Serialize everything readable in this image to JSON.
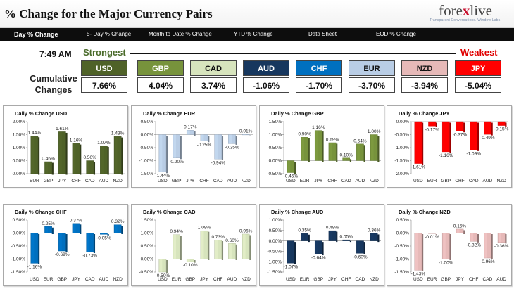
{
  "header": {
    "title": "% Change for the Major Currency Pairs",
    "logo_left": "fore",
    "logo_x": "x",
    "logo_right": "live",
    "logo_tagline": "Transparent Conversations. Window Labs."
  },
  "tabs": [
    "Day % Change",
    "5- Day % Change",
    "Month to Date % Change",
    "YTD % Change",
    "Data Sheet",
    "EOD % Change"
  ],
  "summary": {
    "time": "7:49 AM",
    "strongest": "Strongest",
    "weakest": "Weakest",
    "cumulative_line1": "Cumulative",
    "cumulative_line2": "Changes",
    "currencies": [
      {
        "code": "USD",
        "value": "7.66%",
        "bg": "#4f6228",
        "fg": "#ffffff"
      },
      {
        "code": "GBP",
        "value": "4.04%",
        "bg": "#77933c",
        "fg": "#ffffff"
      },
      {
        "code": "CAD",
        "value": "3.74%",
        "bg": "#d7e4bd",
        "fg": "#111111"
      },
      {
        "code": "AUD",
        "value": "-1.06%",
        "bg": "#17375e",
        "fg": "#ffffff"
      },
      {
        "code": "CHF",
        "value": "-1.70%",
        "bg": "#0070c0",
        "fg": "#ffffff"
      },
      {
        "code": "EUR",
        "value": "-3.70%",
        "bg": "#b9cde5",
        "fg": "#111111"
      },
      {
        "code": "NZD",
        "value": "-3.94%",
        "bg": "#e6b9b8",
        "fg": "#111111"
      },
      {
        "code": "JPY",
        "value": "-5.04%",
        "bg": "#ff0000",
        "fg": "#ffffff"
      }
    ]
  },
  "chart_data": [
    {
      "type": "bar",
      "title": "Daily % Change USD",
      "categories": [
        "EUR",
        "GBP",
        "JPY",
        "CHF",
        "CAD",
        "AUD",
        "NZD"
      ],
      "values": [
        1.44,
        0.46,
        1.61,
        1.16,
        0.5,
        1.07,
        1.43
      ],
      "labels": [
        "1.44%",
        "0.46%",
        "1.61%",
        "1.16%",
        "0.50%",
        "1.07%",
        "1.43%"
      ],
      "ylim": [
        0,
        2.0
      ],
      "yticks": [
        "0.00%",
        "0.50%",
        "1.00%",
        "1.50%",
        "2.00%"
      ],
      "tick_values": [
        0,
        0.5,
        1.0,
        1.5,
        2.0
      ],
      "color": "#4f6228"
    },
    {
      "type": "bar",
      "title": "Daily % Change EUR",
      "categories": [
        "USD",
        "GBP",
        "JPY",
        "CHF",
        "CAD",
        "AUD",
        "NZD"
      ],
      "values": [
        -1.44,
        -0.9,
        0.17,
        -0.25,
        -0.94,
        -0.35,
        0.01
      ],
      "labels": [
        "-1.44%",
        "-0.90%",
        "0.17%",
        "-0.25%",
        "-0.94%",
        "-0.35%",
        "0.01%"
      ],
      "ylim": [
        -1.5,
        0.5
      ],
      "yticks": [
        "-1.50%",
        "-1.00%",
        "-0.50%",
        "0.00%",
        "0.50%"
      ],
      "tick_values": [
        -1.5,
        -1.0,
        -0.5,
        0,
        0.5
      ],
      "color": "#b9cde5"
    },
    {
      "type": "bar",
      "title": "Daily % Change GBP",
      "categories": [
        "USD",
        "EUR",
        "JPY",
        "CHF",
        "CAD",
        "AUD",
        "NZD"
      ],
      "values": [
        -0.46,
        0.9,
        1.16,
        0.69,
        0.1,
        0.64,
        1.0
      ],
      "labels": [
        "-0.46%",
        "0.90%",
        "1.16%",
        "0.69%",
        "0.10%",
        "0.64%",
        "1.00%"
      ],
      "ylim": [
        -0.5,
        1.5
      ],
      "yticks": [
        "-0.50%",
        "0.00%",
        "0.50%",
        "1.00%",
        "1.50%"
      ],
      "tick_values": [
        -0.5,
        0,
        0.5,
        1.0,
        1.5
      ],
      "color": "#77933c"
    },
    {
      "type": "bar",
      "title": "Daily % Change JPY",
      "categories": [
        "USD",
        "EUR",
        "GBP",
        "CHF",
        "CAD",
        "AUD",
        "NZD"
      ],
      "values": [
        -1.61,
        -0.17,
        -1.16,
        -0.37,
        -1.09,
        -0.49,
        -0.15
      ],
      "labels": [
        "-1.61%",
        "-0.17%",
        "-1.16%",
        "-0.37%",
        "-1.09%",
        "-0.49%",
        "-0.15%"
      ],
      "ylim": [
        -2.0,
        0
      ],
      "yticks": [
        "-2.00%",
        "-1.50%",
        "-1.00%",
        "-0.50%",
        "0.00%"
      ],
      "tick_values": [
        -2.0,
        -1.5,
        -1.0,
        -0.5,
        0
      ],
      "color": "#ff0000"
    },
    {
      "type": "bar",
      "title": "Daily % Change CHF",
      "categories": [
        "USD",
        "EUR",
        "GBP",
        "JPY",
        "CAD",
        "AUD",
        "NZD"
      ],
      "values": [
        -1.16,
        0.25,
        -0.69,
        0.37,
        -0.73,
        -0.05,
        0.32
      ],
      "labels": [
        "-1.16%",
        "0.25%",
        "-0.69%",
        "0.37%",
        "-0.73%",
        "-0.05%",
        "0.32%"
      ],
      "ylim": [
        -1.5,
        0.5
      ],
      "yticks": [
        "-1.50%",
        "-1.00%",
        "-0.50%",
        "0.00%",
        "0.50%"
      ],
      "tick_values": [
        -1.5,
        -1.0,
        -0.5,
        0,
        0.5
      ],
      "color": "#0070c0"
    },
    {
      "type": "bar",
      "title": "Daily % Change CAD",
      "categories": [
        "USD",
        "EUR",
        "GBP",
        "JPY",
        "CHF",
        "AUD",
        "NZD"
      ],
      "values": [
        -0.5,
        0.94,
        -0.1,
        1.09,
        0.73,
        0.6,
        0.96
      ],
      "labels": [
        "-0.50%",
        "0.94%",
        "-0.10%",
        "1.09%",
        "0.73%",
        "0.60%",
        "0.96%"
      ],
      "ylim": [
        -0.5,
        1.5
      ],
      "yticks": [
        "-0.50%",
        "0.00%",
        "0.50%",
        "1.00%",
        "1.50%"
      ],
      "tick_values": [
        -0.5,
        0,
        0.5,
        1.0,
        1.5
      ],
      "color": "#d7e4bd"
    },
    {
      "type": "bar",
      "title": "Daily % Change AUD",
      "categories": [
        "USD",
        "EUR",
        "GBP",
        "JPY",
        "CHF",
        "CAD",
        "NZD"
      ],
      "values": [
        -1.07,
        0.35,
        -0.64,
        0.49,
        0.05,
        -0.6,
        0.36
      ],
      "labels": [
        "-1.07%",
        "0.35%",
        "-0.64%",
        "0.49%",
        "0.05%",
        "-0.60%",
        "0.36%"
      ],
      "ylim": [
        -1.5,
        1.0
      ],
      "yticks": [
        "-1.50%",
        "-1.00%",
        "-0.50%",
        "0.00%",
        "0.50%",
        "1.00%"
      ],
      "tick_values": [
        -1.5,
        -1.0,
        -0.5,
        0,
        0.5,
        1.0
      ],
      "color": "#17375e"
    },
    {
      "type": "bar",
      "title": "Daily % Change NZD",
      "categories": [
        "USD",
        "EUR",
        "GBP",
        "JPY",
        "CHF",
        "CAD",
        "AUD"
      ],
      "values": [
        -1.43,
        -0.01,
        -1.0,
        0.15,
        -0.32,
        -0.96,
        -0.36
      ],
      "labels": [
        "-1.43%",
        "-0.01%",
        "-1.00%",
        "0.15%",
        "-0.32%",
        "-0.96%",
        "-0.36%"
      ],
      "ylim": [
        -1.5,
        0.5
      ],
      "yticks": [
        "-1.50%",
        "-1.00%",
        "-0.50%",
        "0.00%",
        "0.50%"
      ],
      "tick_values": [
        -1.5,
        -1.0,
        -0.5,
        0,
        0.5
      ],
      "color": "#e6b9b8"
    }
  ]
}
